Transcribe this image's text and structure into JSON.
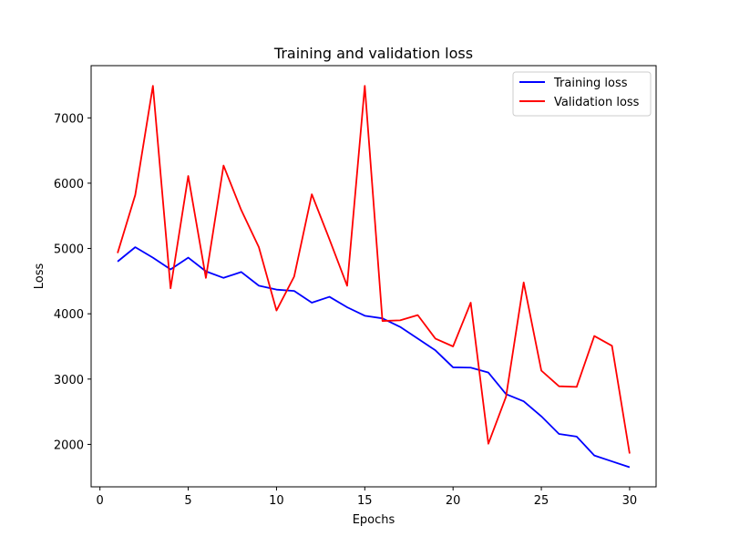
{
  "chart_data": {
    "type": "line",
    "title": "Training and validation loss",
    "xlabel": "Epochs",
    "ylabel": "Loss",
    "xlim": [
      -0.5,
      31.5
    ],
    "ylim": [
      1350,
      7800
    ],
    "xticks": [
      0,
      5,
      10,
      15,
      20,
      25,
      30
    ],
    "yticks": [
      2000,
      3000,
      4000,
      5000,
      6000,
      7000
    ],
    "grid": false,
    "legend_position": "top-right",
    "x": [
      1,
      2,
      3,
      4,
      5,
      6,
      7,
      8,
      9,
      10,
      11,
      12,
      13,
      14,
      15,
      16,
      17,
      18,
      19,
      20,
      21,
      22,
      23,
      24,
      25,
      26,
      27,
      28,
      29,
      30
    ],
    "series": [
      {
        "name": "Training loss",
        "color": "#0000ff",
        "values": [
          4800,
          5020,
          4860,
          4680,
          4860,
          4650,
          4550,
          4640,
          4430,
          4370,
          4350,
          4170,
          4260,
          4100,
          3970,
          3930,
          3800,
          3620,
          3440,
          3180,
          3175,
          3100,
          2770,
          2660,
          2430,
          2160,
          2120,
          1830,
          1740,
          1650
        ]
      },
      {
        "name": "Validation loss",
        "color": "#ff0000",
        "values": [
          4930,
          5820,
          7490,
          4390,
          6110,
          4550,
          6270,
          5590,
          5020,
          4050,
          4570,
          5830,
          5140,
          4430,
          7490,
          3890,
          3900,
          3980,
          3620,
          3500,
          4170,
          2010,
          2730,
          4480,
          3130,
          2890,
          2880,
          3660,
          3510,
          1860
        ]
      }
    ]
  }
}
